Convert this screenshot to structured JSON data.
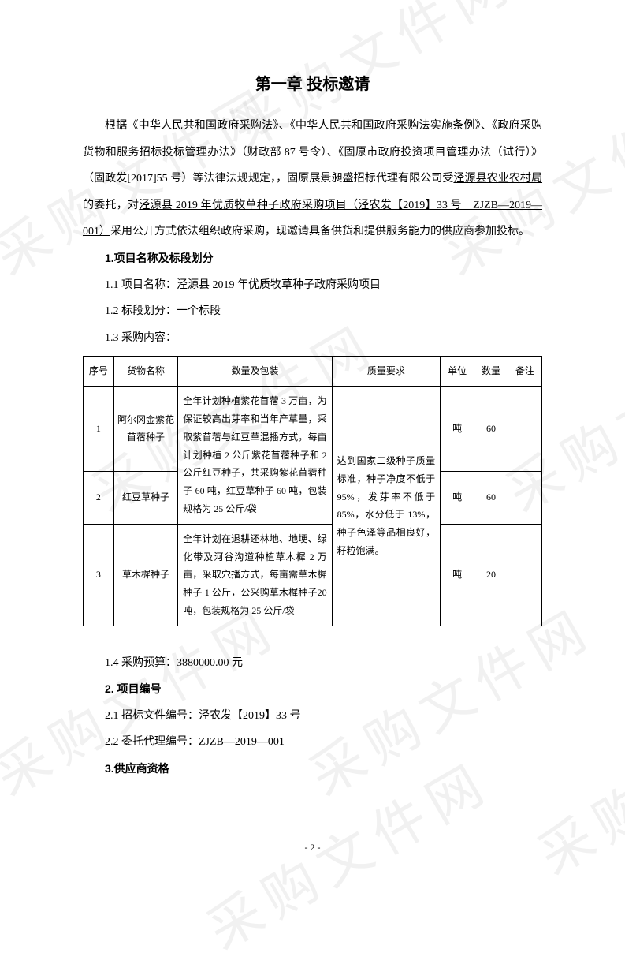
{
  "watermark_text": "采购文件网",
  "chapter_title": "第一章 投标邀请",
  "intro_para_prefix": "根据《中华人民共和国政府采购法》、《中华人民共和国政府采购法实施条例》、《政府采购货物和服务招标投标管理办法》（财政部 87 号令）、《固原市政府投资项目管理办法（试行）》（固政发[2017]55 号）等法律法规规定，，固原展景昶盛招标代理有限公司受",
  "intro_underline1": "泾源县农业农村局",
  "intro_middle1": "的委托，对",
  "intro_underline2": "泾源县 2019 年优质牧草种子政府采购项目（泾农发【2019】33 号　ZJZB—2019—001）",
  "intro_suffix": "采用公开方式依法组织政府采购，现邀请具备供货和提供服务能力的供应商参加投标。",
  "section1_heading": "1.项目名称及标段划分",
  "line_1_1": "1.1 项目名称：泾源县 2019 年优质牧草种子政府采购项目",
  "line_1_2": "1.2 标段划分：一个标段",
  "line_1_3": "1.3 采购内容：",
  "table": {
    "headers": {
      "seq": "序号",
      "name": "货物名称",
      "pkg": "数量及包装",
      "qual": "质量要求",
      "unit": "单位",
      "qty": "数量",
      "note": "备注"
    },
    "pkg_merged": "全年计划种植紫花苜蓿 3 万亩，为保证较高出芽率和当年产草量，采取紫苜蓿与红豆草混播方式，每亩计划种植 2 公斤紫花苜蓿种子和 2 公斤红豆种子，共采购紫花苜蓿种子 60 吨，红豆草种子 60 吨，包装规格为 25 公斤/袋",
    "quality_merged": "达到国家二级种子质量标准，种子净度不低于 95%，发芽率不低于 85%，水分低于 13%，种子色泽等品相良好，籽粒饱满。",
    "rows": [
      {
        "seq": "1",
        "name": "阿尔冈金紫花苜蓿种子",
        "unit": "吨",
        "qty": "60",
        "note": ""
      },
      {
        "seq": "2",
        "name": "红豆草种子",
        "unit": "吨",
        "qty": "60",
        "note": ""
      },
      {
        "seq": "3",
        "name": "草木樨种子",
        "pkg": "全年计划在退耕还林地、地埂、绿化带及河谷沟道种植草木樨 2 万亩，采取穴播方式，每亩需草木樨种子 1 公斤，公采购草木樨种子20 吨，包装规格为 25 公斤/袋",
        "unit": "吨",
        "qty": "20",
        "note": ""
      }
    ]
  },
  "line_1_4": "1.4 采购预算：3880000.00 元",
  "section2_heading": "2. 项目编号",
  "line_2_1": "2.1 招标文件编号：泾农发【2019】33 号",
  "line_2_2": "2.2 委托代理编号：ZJZB—2019—001",
  "section3_heading": "3.供应商资格",
  "page_number": "- 2 -"
}
